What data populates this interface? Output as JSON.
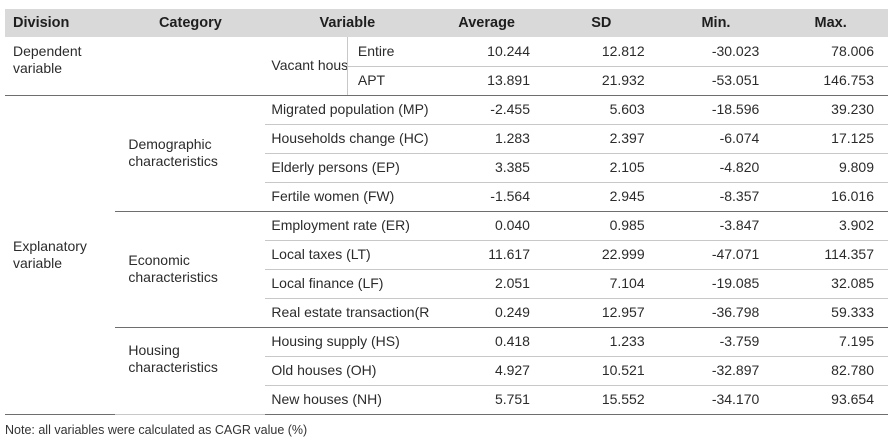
{
  "headers": [
    "Division",
    "Category",
    "Variable",
    "Average",
    "SD",
    "Min.",
    "Max."
  ],
  "dependent": {
    "division": "Dependent variable",
    "variable": "Vacant houses (VH)",
    "rows": [
      {
        "sub": "Entire",
        "average": "10.244",
        "sd": "12.812",
        "min": "-30.023",
        "max": "78.006"
      },
      {
        "sub": "APT",
        "average": "13.891",
        "sd": "21.932",
        "min": "-53.051",
        "max": "146.753"
      }
    ]
  },
  "explanatory": {
    "division": "Explanatory variable",
    "groups": [
      {
        "category": "Demographic characteristics",
        "rows": [
          {
            "variable": "Migrated population (MP)",
            "average": "-2.455",
            "sd": "5.603",
            "min": "-18.596",
            "max": "39.230"
          },
          {
            "variable": "Households change (HC)",
            "average": "1.283",
            "sd": "2.397",
            "min": "-6.074",
            "max": "17.125"
          },
          {
            "variable": "Elderly persons (EP)",
            "average": "3.385",
            "sd": "2.105",
            "min": "-4.820",
            "max": "9.809"
          },
          {
            "variable": "Fertile women (FW)",
            "average": "-1.564",
            "sd": "2.945",
            "min": "-8.357",
            "max": "16.016"
          }
        ]
      },
      {
        "category": "Economic characteristics",
        "rows": [
          {
            "variable": "Employment rate (ER)",
            "average": "0.040",
            "sd": "0.985",
            "min": "-3.847",
            "max": "3.902"
          },
          {
            "variable": "Local taxes (LT)",
            "average": "11.617",
            "sd": "22.999",
            "min": "-47.071",
            "max": "114.357"
          },
          {
            "variable": "Local finance (LF)",
            "average": "2.051",
            "sd": "7.104",
            "min": "-19.085",
            "max": "32.085"
          },
          {
            "variable": "Real estate transaction(RT)",
            "average": "0.249",
            "sd": "12.957",
            "min": "-36.798",
            "max": "59.333"
          }
        ]
      },
      {
        "category": "Housing characteristics",
        "rows": [
          {
            "variable": "Housing supply (HS)",
            "average": "0.418",
            "sd": "1.233",
            "min": "-3.759",
            "max": "7.195"
          },
          {
            "variable": "Old houses (OH)",
            "average": "4.927",
            "sd": "10.521",
            "min": "-32.897",
            "max": "82.780"
          },
          {
            "variable": "New houses (NH)",
            "average": "5.751",
            "sd": "15.552",
            "min": "-34.170",
            "max": "93.654"
          }
        ]
      }
    ]
  },
  "note": "Note: all variables were calculated as CAGR value (%)"
}
